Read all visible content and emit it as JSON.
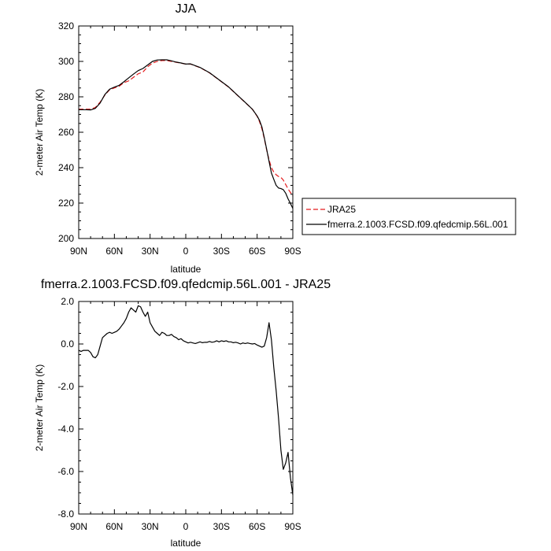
{
  "chart_data": [
    {
      "type": "line",
      "title": "JJA",
      "xlabel": "latitude",
      "ylabel": "2-meter Air Temp (K)",
      "xlim": [
        90,
        -90
      ],
      "ylim": [
        200,
        320
      ],
      "x_ticks": [
        {
          "value": 90,
          "label": "90N"
        },
        {
          "value": 60,
          "label": "60N"
        },
        {
          "value": 30,
          "label": "30N"
        },
        {
          "value": 0,
          "label": "0"
        },
        {
          "value": -30,
          "label": "30S"
        },
        {
          "value": -60,
          "label": "60S"
        },
        {
          "value": -90,
          "label": "90S"
        }
      ],
      "y_ticks": [
        {
          "value": 200,
          "label": "200"
        },
        {
          "value": 220,
          "label": "220"
        },
        {
          "value": 240,
          "label": "240"
        },
        {
          "value": 260,
          "label": "260"
        },
        {
          "value": 280,
          "label": "280"
        },
        {
          "value": 300,
          "label": "300"
        },
        {
          "value": 320,
          "label": "320"
        }
      ],
      "legend_position": "right",
      "series": [
        {
          "name": "JRA25",
          "color": "#e41a1c",
          "dash": "dashed",
          "x": [
            90,
            84,
            80,
            76,
            72,
            68,
            64,
            60,
            56,
            52,
            48,
            44,
            40,
            36,
            32,
            28,
            24,
            20,
            16,
            12,
            8,
            4,
            0,
            -4,
            -8,
            -12,
            -16,
            -20,
            -24,
            -28,
            -32,
            -36,
            -40,
            -44,
            -48,
            -52,
            -56,
            -60,
            -62,
            -64,
            -66,
            -68,
            -70,
            -72,
            -74,
            -76,
            -78,
            -80,
            -82,
            -84,
            -86,
            -88,
            -90
          ],
          "y": [
            273,
            273,
            273,
            274,
            277,
            281,
            284,
            285,
            286,
            288,
            289,
            291,
            293,
            294,
            297,
            299,
            300,
            300.5,
            300.5,
            300,
            299.5,
            299,
            298.5,
            298.5,
            297.5,
            296.5,
            295,
            293.5,
            291.5,
            289.5,
            287.5,
            285.5,
            283,
            280.5,
            278,
            275.5,
            273,
            269,
            266,
            262,
            256.5,
            250,
            244.5,
            240,
            237.5,
            236,
            235,
            234.5,
            233,
            230.5,
            228,
            226,
            224
          ]
        },
        {
          "name": "fmerra.2.1003.FCSD.f09.qfedcmip.56L.001",
          "color": "#000000",
          "dash": "solid",
          "x": [
            90,
            84,
            80,
            76,
            72,
            68,
            64,
            60,
            56,
            52,
            48,
            44,
            40,
            36,
            32,
            28,
            24,
            20,
            16,
            12,
            8,
            4,
            0,
            -4,
            -8,
            -12,
            -16,
            -20,
            -24,
            -28,
            -32,
            -36,
            -40,
            -44,
            -48,
            -52,
            -56,
            -60,
            -62,
            -64,
            -66,
            -68,
            -70,
            -72,
            -74,
            -76,
            -78,
            -80,
            -82,
            -84,
            -86,
            -88,
            -90
          ],
          "y": [
            272.7,
            272.7,
            272.6,
            273.5,
            276.5,
            281.3,
            284.3,
            285.5,
            286.5,
            288.5,
            290.7,
            292.8,
            294.8,
            296,
            298,
            300,
            300.8,
            300.9,
            300.9,
            300.3,
            299.6,
            299.1,
            298.5,
            298.6,
            297.6,
            296.6,
            295.1,
            293.6,
            291.6,
            289.6,
            287.6,
            285.6,
            283.1,
            280.6,
            278.1,
            275.6,
            273,
            269.2,
            266.7,
            263,
            257,
            250.4,
            243.6,
            237,
            233.4,
            230,
            228.5,
            228.2,
            227.6,
            225.6,
            222.4,
            219.8,
            217
          ]
        }
      ]
    },
    {
      "type": "line",
      "title": "fmerra.2.1003.FCSD.f09.qfedcmip.56L.001 - JRA25",
      "xlabel": "latitude",
      "ylabel": "2-meter Air Temp (K)",
      "xlim": [
        90,
        -90
      ],
      "ylim": [
        -8,
        2
      ],
      "x_ticks": [
        {
          "value": 90,
          "label": "90N"
        },
        {
          "value": 60,
          "label": "60N"
        },
        {
          "value": 30,
          "label": "30N"
        },
        {
          "value": 0,
          "label": "0"
        },
        {
          "value": -30,
          "label": "30S"
        },
        {
          "value": -60,
          "label": "60S"
        },
        {
          "value": -90,
          "label": "90S"
        }
      ],
      "y_ticks": [
        {
          "value": -8,
          "label": "-8.0"
        },
        {
          "value": -6,
          "label": "-6.0"
        },
        {
          "value": -4,
          "label": "-4.0"
        },
        {
          "value": -2,
          "label": "-2.0"
        },
        {
          "value": 0,
          "label": "0.0"
        },
        {
          "value": 2,
          "label": "2.0"
        }
      ],
      "series": [
        {
          "color": "#000000",
          "dash": "solid",
          "x": [
            90,
            88,
            86,
            84,
            82,
            80,
            78,
            76,
            74,
            72,
            70,
            68,
            66,
            64,
            62,
            60,
            58,
            56,
            54,
            52,
            50,
            48,
            46,
            44,
            42,
            40,
            38,
            36,
            34,
            32,
            30,
            28,
            26,
            24,
            22,
            20,
            18,
            16,
            14,
            12,
            10,
            8,
            6,
            4,
            2,
            0,
            -2,
            -4,
            -6,
            -8,
            -10,
            -12,
            -14,
            -16,
            -18,
            -20,
            -22,
            -24,
            -26,
            -28,
            -30,
            -32,
            -34,
            -36,
            -38,
            -40,
            -42,
            -44,
            -46,
            -48,
            -50,
            -52,
            -54,
            -56,
            -58,
            -60,
            -62,
            -64,
            -66,
            -68,
            -70,
            -72,
            -74,
            -76,
            -78,
            -80,
            -82,
            -84,
            -86,
            -88,
            -90
          ],
          "y": [
            -0.3,
            -0.35,
            -0.3,
            -0.3,
            -0.3,
            -0.4,
            -0.6,
            -0.65,
            -0.5,
            -0.1,
            0.3,
            0.4,
            0.5,
            0.55,
            0.5,
            0.55,
            0.6,
            0.7,
            0.85,
            1.0,
            1.2,
            1.5,
            1.7,
            1.6,
            1.5,
            1.8,
            1.75,
            1.5,
            1.3,
            1.5,
            1.0,
            0.8,
            0.6,
            0.5,
            0.4,
            0.55,
            0.5,
            0.4,
            0.4,
            0.45,
            0.35,
            0.3,
            0.2,
            0.25,
            0.15,
            0.1,
            0.05,
            0.08,
            0.05,
            0.02,
            0.06,
            0.1,
            0.06,
            0.08,
            0.08,
            0.12,
            0.08,
            0.1,
            0.15,
            0.1,
            0.15,
            0.12,
            0.15,
            0.1,
            0.1,
            0.06,
            0.08,
            0.05,
            0.0,
            0.05,
            0.02,
            0.05,
            0.02,
            0.0,
            0.02,
            -0.05,
            -0.1,
            -0.15,
            -0.1,
            0.3,
            1.0,
            0.2,
            -1.1,
            -2.2,
            -3.5,
            -5.0,
            -5.9,
            -5.6,
            -5.1,
            -6.3,
            -7.1
          ]
        }
      ]
    }
  ]
}
